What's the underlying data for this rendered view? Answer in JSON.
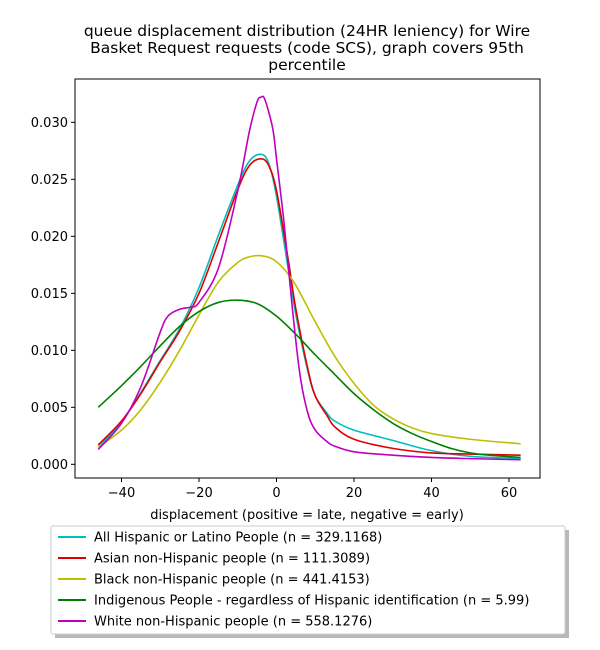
{
  "chart_data": {
    "type": "line",
    "title_lines": [
      "queue displacement distribution (24HR leniency) for Wire",
      "Basket Request  requests (code SCS), graph covers 95th",
      "percentile"
    ],
    "xlabel": "displacement (positive = late, negative = early)",
    "ylabel": "",
    "xlim": [
      -52,
      68
    ],
    "ylim": [
      -0.0012,
      0.0338
    ],
    "xticks": [
      -40,
      -20,
      0,
      20,
      40,
      60
    ],
    "xtick_labels": [
      "−40",
      "−20",
      "0",
      "20",
      "40",
      "60"
    ],
    "yticks": [
      0.0,
      0.005,
      0.01,
      0.015,
      0.02,
      0.025,
      0.03
    ],
    "ytick_labels": [
      "0.000",
      "0.005",
      "0.010",
      "0.015",
      "0.020",
      "0.025",
      "0.030"
    ],
    "grid": false,
    "legend_position": "below-chart",
    "series": [
      {
        "name": "All Hispanic or Latino People (n = 329.1168)",
        "color": "#00bfbf",
        "x": [
          -46,
          -40,
          -35,
          -30,
          -25,
          -20,
          -15,
          -10,
          -7,
          -4,
          -2,
          0,
          3,
          5,
          8,
          10,
          13,
          15,
          20,
          30,
          40,
          50,
          63
        ],
        "y": [
          0.0015,
          0.0037,
          0.0063,
          0.0091,
          0.0119,
          0.0155,
          0.0201,
          0.0245,
          0.0266,
          0.0272,
          0.0264,
          0.0235,
          0.0172,
          0.0131,
          0.0083,
          0.006,
          0.0045,
          0.0038,
          0.003,
          0.0021,
          0.0012,
          0.0007,
          0.0005
        ]
      },
      {
        "name": "Asian non-Hispanic people (n = 111.3089)",
        "color": "#e00000",
        "x": [
          -46,
          -40,
          -35,
          -30,
          -25,
          -20,
          -15,
          -10,
          -7,
          -4,
          -2,
          0,
          3,
          5,
          8,
          10,
          13,
          15,
          20,
          30,
          40,
          50,
          63
        ],
        "y": [
          0.0017,
          0.0038,
          0.0062,
          0.009,
          0.0117,
          0.015,
          0.0195,
          0.0241,
          0.0262,
          0.0268,
          0.0262,
          0.024,
          0.018,
          0.0136,
          0.0085,
          0.006,
          0.0043,
          0.0033,
          0.0022,
          0.0014,
          0.001,
          0.0009,
          0.0008
        ]
      },
      {
        "name": "Black non-Hispanic people (n = 441.4153)",
        "color": "#bfbf00",
        "x": [
          -46,
          -40,
          -35,
          -30,
          -25,
          -20,
          -15,
          -10,
          -7,
          -4,
          -1,
          2,
          5,
          10,
          15,
          20,
          25,
          30,
          35,
          40,
          50,
          63
        ],
        "y": [
          0.0015,
          0.003,
          0.0048,
          0.0072,
          0.01,
          0.0131,
          0.016,
          0.0177,
          0.0182,
          0.0183,
          0.018,
          0.0171,
          0.0157,
          0.0125,
          0.0095,
          0.0071,
          0.0052,
          0.004,
          0.0032,
          0.0027,
          0.0022,
          0.0018
        ]
      },
      {
        "name": "Indigenous People - regardless of Hispanic identification (n = 5.99)",
        "color": "#008000",
        "x": [
          -46,
          -40,
          -35,
          -30,
          -25,
          -20,
          -15,
          -10,
          -5,
          0,
          5,
          10,
          15,
          20,
          25,
          30,
          35,
          40,
          45,
          50,
          55,
          63
        ],
        "y": [
          0.005,
          0.0069,
          0.0086,
          0.0104,
          0.0121,
          0.0134,
          0.0142,
          0.0144,
          0.0141,
          0.013,
          0.0114,
          0.0096,
          0.0079,
          0.0062,
          0.0048,
          0.0036,
          0.0027,
          0.002,
          0.0014,
          0.001,
          0.0008,
          0.0006
        ]
      },
      {
        "name": "White non-Hispanic people (n = 558.1276)",
        "color": "#bf00bf",
        "x": [
          -46,
          -40,
          -35,
          -30,
          -28,
          -25,
          -22,
          -20,
          -15,
          -10,
          -7,
          -5,
          -4,
          -3,
          -1,
          0,
          2,
          4,
          6,
          8,
          10,
          13,
          15,
          20,
          30,
          40,
          50,
          63
        ],
        "y": [
          0.0013,
          0.0036,
          0.0068,
          0.0116,
          0.013,
          0.0136,
          0.0138,
          0.0142,
          0.0172,
          0.024,
          0.0292,
          0.0318,
          0.0322,
          0.032,
          0.0295,
          0.0268,
          0.021,
          0.014,
          0.008,
          0.0046,
          0.003,
          0.002,
          0.0016,
          0.0011,
          0.0008,
          0.0006,
          0.0005,
          0.0004
        ]
      }
    ]
  }
}
